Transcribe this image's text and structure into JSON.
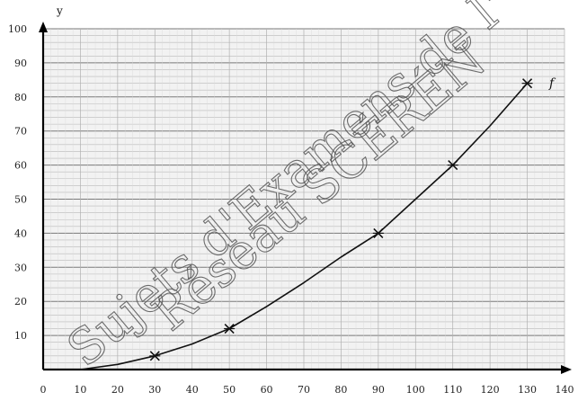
{
  "chart_data": {
    "type": "line",
    "xlabel": "",
    "ylabel": "y",
    "xlim": [
      0,
      140
    ],
    "ylim": [
      0,
      100
    ],
    "x_ticks": [
      "0",
      "10",
      "20",
      "30",
      "40",
      "50",
      "60",
      "70",
      "80",
      "90",
      "100",
      "110",
      "120",
      "130",
      "140"
    ],
    "y_ticks": [
      "100",
      "90",
      "80",
      "70",
      "60",
      "50",
      "40",
      "30",
      "20",
      "10"
    ],
    "grid": true,
    "series": [
      {
        "name": "f",
        "color": "#111111",
        "curve": {
          "x": [
            10,
            20,
            30,
            40,
            50,
            60,
            70,
            80,
            90,
            100,
            110,
            120,
            130
          ],
          "y": [
            0,
            1.5,
            4,
            7.5,
            12,
            18.5,
            25.5,
            33,
            40,
            50,
            60,
            71.5,
            84
          ]
        },
        "marked_points": {
          "x": [
            30,
            50,
            90,
            110,
            130
          ],
          "y": [
            4,
            12,
            40,
            60,
            84
          ]
        }
      }
    ]
  },
  "watermark": {
    "line1": "Sujets d'Examens de l'",
    "line2": "Réseau SCÉRÉN"
  }
}
